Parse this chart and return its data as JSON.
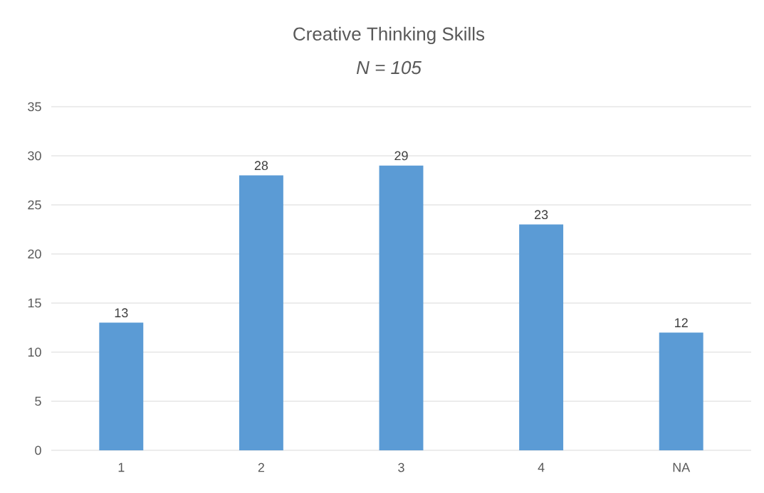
{
  "chart_data": {
    "type": "bar",
    "title": "Creative Thinking Skills",
    "subtitle": "N = 105",
    "categories": [
      "1",
      "2",
      "3",
      "4",
      "NA"
    ],
    "values": [
      13,
      28,
      29,
      23,
      12
    ],
    "color": "#5b9bd5",
    "ylim": [
      0,
      35
    ],
    "yticks": [
      0,
      5,
      10,
      15,
      20,
      25,
      30,
      35
    ],
    "grid": "y",
    "data_labels": true
  }
}
